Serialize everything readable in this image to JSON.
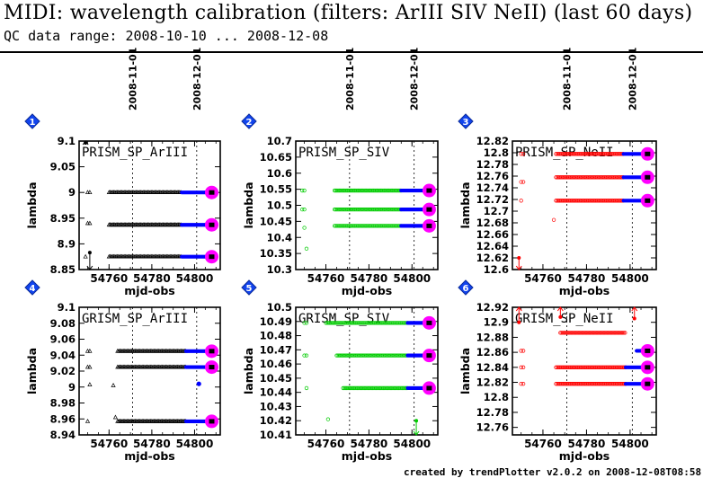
{
  "header": {
    "title": "MIDI: wavelength calibration (filters: ArIII SIV NeII) (last 60 days)",
    "subtitle": "QC data range: 2008-10-10 ... 2008-12-08"
  },
  "footer": "created by trendPlotter v2.0.2 on 2008-12-08T08:58:18",
  "dates": {
    "labels": [
      "2008-11-01",
      "2008-12-01"
    ],
    "mjd": [
      54771,
      54801
    ]
  },
  "colors": {
    "ArIII": "#000000",
    "SIV": "#00cc00",
    "NeII": "#ff0000",
    "recent": "#0000ff",
    "latest": "#ff00ff",
    "badge": "#1144ee"
  },
  "chart_data": [
    {
      "panel": "1",
      "type": "scatter",
      "label": "PRISM_SP_ArIII",
      "color": "#000000",
      "marker": "triangle",
      "xlabel": "mjd-obs",
      "ylabel": "lambda",
      "xlim": [
        54746,
        54812
      ],
      "xticks": [
        54760,
        54780,
        54800
      ],
      "ylim": [
        8.85,
        9.1
      ],
      "yticks": [
        "8.85",
        "8.9",
        "8.95",
        "9",
        "9.05",
        "9.1"
      ],
      "levels": [
        9.0,
        8.937,
        8.875
      ],
      "early_points": [
        {
          "x": 54750,
          "y": 9.0
        },
        {
          "x": 54751,
          "y": 9.0
        },
        {
          "x": 54750,
          "y": 8.94
        },
        {
          "x": 54751,
          "y": 8.94
        },
        {
          "x": 54749,
          "y": 8.875
        }
      ],
      "outliers": [
        {
          "x": 54751,
          "y": 8.883,
          "dir": "down"
        },
        {
          "x": 54749,
          "y": 9.097,
          "dir": "up"
        }
      ],
      "runs": [
        {
          "x0": 54760,
          "x1": 54794,
          "levels": [
            0,
            1,
            2
          ]
        }
      ],
      "recent_runs": [
        {
          "x0": 54794,
          "x1": 54808,
          "levels": [
            0,
            1,
            2
          ]
        }
      ],
      "latest": [
        {
          "x": 54808,
          "level": 0
        },
        {
          "x": 54808,
          "level": 1
        },
        {
          "x": 54808,
          "level": 2
        }
      ]
    },
    {
      "panel": "2",
      "type": "scatter",
      "label": "PRISM_SP_SIV",
      "color": "#00cc00",
      "marker": "circle",
      "xlabel": "mjd-obs",
      "ylabel": "lambda",
      "xlim": [
        54746,
        54812
      ],
      "xticks": [
        54760,
        54780,
        54800
      ],
      "ylim": [
        10.3,
        10.7
      ],
      "yticks": [
        "10.3",
        "10.35",
        "10.4",
        "10.45",
        "10.5",
        "10.55",
        "10.6",
        "10.65",
        "10.7"
      ],
      "levels": [
        10.546,
        10.487,
        10.436
      ],
      "early_points": [
        {
          "x": 54749,
          "y": 10.546
        },
        {
          "x": 54750,
          "y": 10.546
        },
        {
          "x": 54749,
          "y": 10.487
        },
        {
          "x": 54750,
          "y": 10.487
        },
        {
          "x": 54750,
          "y": 10.43
        },
        {
          "x": 54751,
          "y": 10.365
        }
      ],
      "outliers": [],
      "runs": [
        {
          "x0": 54764,
          "x1": 54795,
          "levels": [
            0,
            1,
            2
          ]
        }
      ],
      "recent_runs": [
        {
          "x0": 54795,
          "x1": 54808,
          "levels": [
            0,
            1,
            2
          ]
        }
      ],
      "latest": [
        {
          "x": 54808,
          "level": 0
        },
        {
          "x": 54808,
          "level": 1
        },
        {
          "x": 54808,
          "level": 2
        }
      ]
    },
    {
      "panel": "3",
      "type": "scatter",
      "label": "PRISM_SP_NeII",
      "color": "#ff0000",
      "marker": "circle",
      "xlabel": "mjd-obs",
      "ylabel": "lambda",
      "xlim": [
        54746,
        54812
      ],
      "xticks": [
        54760,
        54780,
        54800
      ],
      "ylim": [
        12.6,
        12.82
      ],
      "yticks": [
        "12.6",
        "12.62",
        "12.64",
        "12.66",
        "12.68",
        "12.7",
        "12.72",
        "12.74",
        "12.76",
        "12.78",
        "12.8",
        "12.82"
      ],
      "levels": [
        12.798,
        12.758,
        12.718
      ],
      "early_points": [
        {
          "x": 54750,
          "y": 12.798
        },
        {
          "x": 54751,
          "y": 12.798
        },
        {
          "x": 54750,
          "y": 12.75
        },
        {
          "x": 54751,
          "y": 12.75
        },
        {
          "x": 54750,
          "y": 12.718
        },
        {
          "x": 54765,
          "y": 12.685
        }
      ],
      "outliers": [
        {
          "x": 54749,
          "y": 12.62,
          "dir": "down"
        }
      ],
      "runs": [
        {
          "x0": 54766,
          "x1": 54797,
          "levels": [
            0,
            1,
            2
          ]
        }
      ],
      "recent_runs": [
        {
          "x0": 54797,
          "x1": 54808,
          "levels": [
            0,
            1,
            2
          ]
        }
      ],
      "latest": [
        {
          "x": 54808,
          "level": 0
        },
        {
          "x": 54808,
          "level": 1
        },
        {
          "x": 54808,
          "level": 2
        }
      ]
    },
    {
      "panel": "4",
      "type": "scatter",
      "label": "GRISM_SP_ArIII",
      "color": "#000000",
      "marker": "triangle",
      "xlabel": "mjd-obs",
      "ylabel": "lambda",
      "xlim": [
        54746,
        54812
      ],
      "xticks": [
        54760,
        54780,
        54800
      ],
      "ylim": [
        8.94,
        9.1
      ],
      "yticks": [
        "8.94",
        "8.96",
        "8.98",
        "9",
        "9.02",
        "9.04",
        "9.06",
        "9.08",
        "9.1"
      ],
      "levels": [
        9.045,
        9.025,
        8.957
      ],
      "early_points": [
        {
          "x": 54750,
          "y": 9.045
        },
        {
          "x": 54751,
          "y": 9.045
        },
        {
          "x": 54750,
          "y": 9.025
        },
        {
          "x": 54751,
          "y": 9.025
        },
        {
          "x": 54751,
          "y": 9.003
        },
        {
          "x": 54762,
          "y": 9.002
        },
        {
          "x": 54763,
          "y": 8.962
        },
        {
          "x": 54750,
          "y": 8.957
        }
      ],
      "outliers": [],
      "runs": [
        {
          "x0": 54764,
          "x1": 54796,
          "levels": [
            0,
            1,
            2
          ]
        }
      ],
      "recent_runs": [
        {
          "x0": 54796,
          "x1": 54808,
          "levels": [
            0,
            1,
            2
          ]
        }
      ],
      "extra_recent": [
        {
          "x": 54802,
          "y": 9.004
        }
      ],
      "latest": [
        {
          "x": 54808,
          "level": 0
        },
        {
          "x": 54808,
          "level": 1
        },
        {
          "x": 54808,
          "level": 2
        }
      ]
    },
    {
      "panel": "5",
      "type": "scatter",
      "label": "GRISM_SP_SIV",
      "color": "#00cc00",
      "marker": "circle",
      "xlabel": "mjd-obs",
      "ylabel": "lambda",
      "xlim": [
        54746,
        54812
      ],
      "xticks": [
        54760,
        54780,
        54800
      ],
      "ylim": [
        10.41,
        10.5
      ],
      "yticks": [
        "10.41",
        "10.42",
        "10.43",
        "10.44",
        "10.45",
        "10.46",
        "10.47",
        "10.48",
        "10.49",
        "10.5"
      ],
      "levels": [
        10.489,
        10.466,
        10.443
      ],
      "early_points": [
        {
          "x": 54750,
          "y": 10.489
        },
        {
          "x": 54751,
          "y": 10.489
        },
        {
          "x": 54750,
          "y": 10.466
        },
        {
          "x": 54751,
          "y": 10.466
        },
        {
          "x": 54751,
          "y": 10.443
        },
        {
          "x": 54761,
          "y": 10.421
        }
      ],
      "outliers": [
        {
          "x": 54802,
          "y": 10.42,
          "dir": "down"
        }
      ],
      "runs": [
        {
          "x0": 54760,
          "x1": 54798,
          "levels": [
            0
          ]
        },
        {
          "x0": 54765,
          "x1": 54798,
          "levels": [
            1
          ]
        },
        {
          "x0": 54768,
          "x1": 54798,
          "levels": [
            2
          ]
        }
      ],
      "recent_runs": [
        {
          "x0": 54798,
          "x1": 54808,
          "levels": [
            0,
            1,
            2
          ]
        }
      ],
      "latest": [
        {
          "x": 54808,
          "level": 0
        },
        {
          "x": 54808,
          "level": 1
        },
        {
          "x": 54808,
          "level": 2
        }
      ]
    },
    {
      "panel": "6",
      "type": "scatter",
      "label": "GRISM_SP_NeII",
      "color": "#ff0000",
      "marker": "circle",
      "xlabel": "mjd-obs",
      "ylabel": "lambda",
      "xlim": [
        54746,
        54812
      ],
      "xticks": [
        54760,
        54780,
        54800
      ],
      "ylim": [
        12.75,
        12.92
      ],
      "yticks": [
        "12.76",
        "12.78",
        "12.8",
        "12.82",
        "12.84",
        "12.86",
        "12.88",
        "12.9",
        "12.92"
      ],
      "levels": [
        12.886,
        12.862,
        12.84,
        12.818
      ],
      "early_points": [
        {
          "x": 54750,
          "y": 12.862
        },
        {
          "x": 54751,
          "y": 12.862
        },
        {
          "x": 54750,
          "y": 12.84
        },
        {
          "x": 54751,
          "y": 12.84
        },
        {
          "x": 54750,
          "y": 12.818
        },
        {
          "x": 54751,
          "y": 12.818
        }
      ],
      "outliers": [
        {
          "x": 54749,
          "y": 12.9,
          "dir": "up"
        },
        {
          "x": 54802,
          "y": 12.905,
          "dir": "up"
        },
        {
          "x": 54768,
          "y": 12.907,
          "dir": "up"
        }
      ],
      "runs": [
        {
          "x0": 54768,
          "x1": 54798,
          "levels": [
            0
          ]
        },
        {
          "x0": 54766,
          "x1": 54798,
          "levels": [
            2,
            3
          ]
        }
      ],
      "recent_runs": [
        {
          "x0": 54803,
          "x1": 54808,
          "levels": [
            1
          ]
        },
        {
          "x0": 54798,
          "x1": 54808,
          "levels": [
            2,
            3
          ]
        }
      ],
      "latest": [
        {
          "x": 54808,
          "level": 1
        },
        {
          "x": 54808,
          "level": 2
        },
        {
          "x": 54808,
          "level": 3
        }
      ]
    }
  ]
}
